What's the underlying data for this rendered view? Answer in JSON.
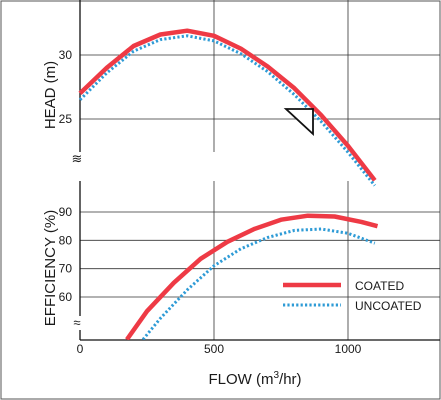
{
  "chart_data": [
    {
      "type": "line",
      "panel": "head",
      "ylabel": "HEAD (m)",
      "xlim": [
        0,
        1200
      ],
      "ylim": [
        22,
        33
      ],
      "yticks": [
        25,
        30
      ],
      "grid": true,
      "series": [
        {
          "name": "COATED",
          "color": "#ee3a45",
          "style": "solid",
          "x": [
            0,
            100,
            200,
            300,
            400,
            500,
            600,
            700,
            800,
            900,
            1000,
            1100
          ],
          "y": [
            27.0,
            29.0,
            30.7,
            31.6,
            31.9,
            31.5,
            30.5,
            29.1,
            27.4,
            25.3,
            22.9,
            20.2
          ]
        },
        {
          "name": "UNCOATED",
          "color": "#2e9bd6",
          "style": "dotted",
          "x": [
            0,
            100,
            200,
            300,
            400,
            500,
            600,
            700,
            800,
            900,
            1000,
            1100
          ],
          "y": [
            26.5,
            28.6,
            30.3,
            31.2,
            31.5,
            31.1,
            30.1,
            28.7,
            26.9,
            24.8,
            22.4,
            19.8
          ]
        }
      ],
      "axis_break_marks": [
        "≈",
        "≋"
      ]
    },
    {
      "type": "line",
      "panel": "efficiency",
      "ylabel": "EFFICIENCY (%)",
      "xlabel_main": "FLOW (m",
      "xlabel_sup": "3",
      "xlabel_tail": "/hr)",
      "xlim": [
        0,
        1200
      ],
      "ylim": [
        50,
        94
      ],
      "xticks": [
        {
          "value": 0,
          "label": "0"
        },
        {
          "value": 500,
          "label": "500"
        },
        {
          "value": 1000,
          "label": "1000"
        }
      ],
      "yticks": [
        60,
        70,
        80,
        90
      ],
      "grid": true,
      "legend": {
        "placement": "bottom-right",
        "items": [
          "COATED",
          "UNCOATED"
        ]
      },
      "series": [
        {
          "name": "COATED",
          "color": "#ee3a45",
          "style": "solid",
          "x": [
            175,
            250,
            350,
            450,
            550,
            650,
            750,
            850,
            950,
            1050,
            1110
          ],
          "y": [
            45,
            55,
            65,
            73.5,
            79.5,
            84,
            87.3,
            88.7,
            88.4,
            86.5,
            85
          ]
        },
        {
          "name": "UNCOATED",
          "color": "#2e9bd6",
          "style": "dotted",
          "x": [
            235,
            300,
            400,
            500,
            600,
            700,
            800,
            900,
            1000,
            1100
          ],
          "y": [
            45,
            52.5,
            62.5,
            71,
            77,
            81,
            83.5,
            84,
            82.5,
            79
          ]
        }
      ],
      "axis_break_marks": [
        "≈"
      ]
    }
  ]
}
